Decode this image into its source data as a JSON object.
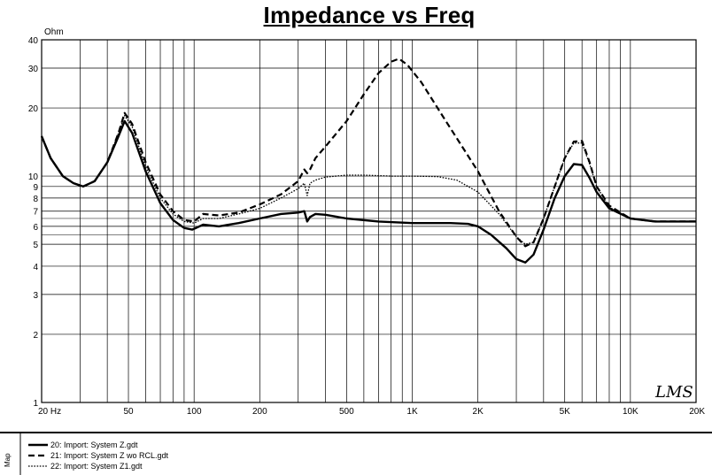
{
  "chart_data": {
    "type": "line",
    "title": "Impedance vs Freq",
    "ylabel": "Ohm",
    "xscale": "log",
    "yscale": "log",
    "xlim": [
      20,
      20000
    ],
    "ylim": [
      1,
      40
    ],
    "grid": true,
    "x_tick_labels": [
      {
        "value": 20,
        "label": "20  Hz"
      },
      {
        "value": 50,
        "label": "50"
      },
      {
        "value": 100,
        "label": "100"
      },
      {
        "value": 200,
        "label": "200"
      },
      {
        "value": 500,
        "label": "500"
      },
      {
        "value": 1000,
        "label": "1K"
      },
      {
        "value": 2000,
        "label": "2K"
      },
      {
        "value": 5000,
        "label": "5K"
      },
      {
        "value": 10000,
        "label": "10K"
      },
      {
        "value": 20000,
        "label": "20K"
      }
    ],
    "y_tick_labels": [
      {
        "value": 40,
        "label": "40"
      },
      {
        "value": 30,
        "label": "30"
      },
      {
        "value": 20,
        "label": "20"
      },
      {
        "value": 10,
        "label": "10"
      },
      {
        "value": 9,
        "label": "9"
      },
      {
        "value": 8,
        "label": "8"
      },
      {
        "value": 7,
        "label": "7"
      },
      {
        "value": 6,
        "label": "6"
      },
      {
        "value": 5,
        "label": "5"
      },
      {
        "value": 4,
        "label": "4"
      },
      {
        "value": 3,
        "label": "3"
      },
      {
        "value": 2,
        "label": "2"
      },
      {
        "value": 1,
        "label": "1"
      }
    ],
    "series": [
      {
        "name": "20: Import: System Z.gdt",
        "style": "solid",
        "x": [
          20,
          22,
          25,
          28,
          31,
          35,
          40,
          45,
          48,
          52,
          60,
          70,
          80,
          90,
          98,
          110,
          130,
          160,
          200,
          250,
          300,
          320,
          330,
          340,
          360,
          400,
          500,
          700,
          1000,
          1500,
          1800,
          2000,
          2300,
          2700,
          3000,
          3300,
          3600,
          4000,
          4500,
          5000,
          5500,
          6000,
          6500,
          7000,
          8000,
          10000,
          13000,
          16000,
          20000
        ],
        "values": [
          15,
          12,
          10,
          9.3,
          9.0,
          9.5,
          11.5,
          15,
          17.5,
          15.5,
          10.5,
          7.6,
          6.4,
          5.9,
          5.8,
          6.1,
          6.0,
          6.2,
          6.5,
          6.8,
          6.9,
          7.0,
          6.3,
          6.6,
          6.8,
          6.75,
          6.5,
          6.3,
          6.2,
          6.2,
          6.15,
          6.0,
          5.5,
          4.8,
          4.3,
          4.15,
          4.5,
          5.8,
          8.0,
          10.0,
          11.3,
          11.2,
          9.8,
          8.5,
          7.2,
          6.5,
          6.3,
          6.3,
          6.3
        ]
      },
      {
        "name": "21: Import: System Z wo RCL.gdt",
        "style": "dashed",
        "x": [
          20,
          22,
          25,
          28,
          31,
          35,
          40,
          45,
          48,
          52,
          60,
          70,
          80,
          90,
          100,
          110,
          130,
          160,
          200,
          250,
          300,
          320,
          330,
          340,
          360,
          400,
          500,
          600,
          700,
          800,
          870,
          950,
          1100,
          1400,
          2000,
          2500,
          3000,
          3300,
          3600,
          4000,
          4500,
          5000,
          5500,
          6000,
          6500,
          7000,
          8000,
          10000,
          13000,
          16000,
          20000
        ],
        "values": [
          15,
          12,
          10,
          9.3,
          9.0,
          9.5,
          11.5,
          15.5,
          19.0,
          17.0,
          11.5,
          8.3,
          7.0,
          6.4,
          6.3,
          6.8,
          6.7,
          6.9,
          7.5,
          8.3,
          9.5,
          10.7,
          10.3,
          10.7,
          12,
          13.5,
          17.5,
          23,
          28.5,
          32,
          33,
          31,
          26,
          18,
          10.5,
          7.0,
          5.4,
          4.9,
          5.1,
          6.5,
          9.0,
          12.0,
          14.2,
          14.3,
          11.5,
          9.0,
          7.4,
          6.5,
          6.3,
          6.3,
          6.3
        ]
      },
      {
        "name": "22: Import: System Z1.gdt",
        "style": "dotted",
        "x": [
          20,
          22,
          25,
          28,
          31,
          35,
          40,
          45,
          48,
          52,
          60,
          70,
          80,
          90,
          100,
          110,
          130,
          160,
          200,
          250,
          300,
          320,
          330,
          340,
          360,
          400,
          500,
          600,
          800,
          1000,
          1300,
          1600,
          2000,
          2500,
          3000,
          3300,
          3600,
          4000,
          4500,
          5000,
          5500,
          6000,
          6500,
          7000,
          8000,
          10000,
          13000,
          16000,
          20000
        ],
        "values": [
          15,
          12,
          10,
          9.3,
          9.0,
          9.5,
          11.5,
          15.5,
          18.5,
          16.5,
          11.0,
          8.0,
          6.8,
          6.3,
          6.2,
          6.5,
          6.5,
          6.8,
          7.2,
          8.0,
          8.8,
          9.3,
          8.2,
          9.3,
          9.6,
          9.9,
          10.1,
          10.1,
          10.0,
          10.0,
          9.95,
          9.6,
          8.5,
          6.8,
          5.4,
          5.0,
          5.1,
          6.5,
          9.0,
          12.0,
          14.0,
          14.0,
          11.3,
          9.0,
          7.3,
          6.5,
          6.3,
          6.3,
          6.3
        ]
      }
    ]
  },
  "side_label": "Map",
  "watermark": "LMS"
}
